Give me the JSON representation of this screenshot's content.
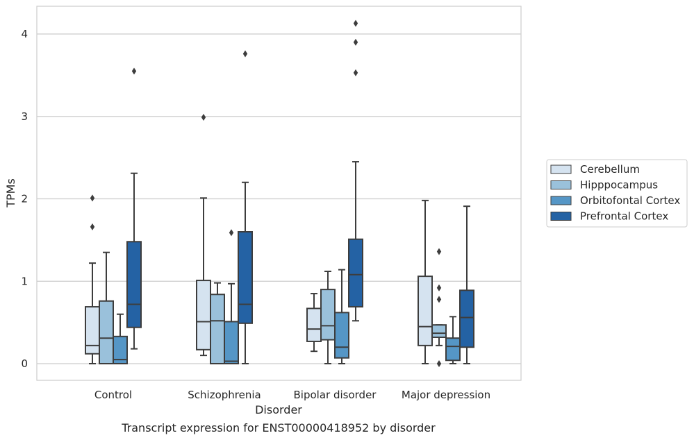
{
  "chart_data": {
    "type": "box",
    "title": "Transcript expression for ENST00000418952 by disorder",
    "xlabel": "Disorder",
    "ylabel": "TPMs",
    "categories": [
      "Control",
      "Schizophrenia",
      "Bipolar disorder",
      "Major depression"
    ],
    "ylim": [
      -0.2,
      4.35
    ],
    "yticks": [
      0,
      1,
      2,
      3,
      4
    ],
    "grid": "horizontal",
    "legend_position": "outside-right",
    "series": [
      {
        "name": "Cerebellum",
        "color": "#d5e3f0",
        "boxes": [
          {
            "whislo": 0.0,
            "q1": 0.12,
            "med": 0.22,
            "q3": 0.69,
            "whishi": 1.22,
            "fliers": [
              1.66,
              2.01
            ]
          },
          {
            "whislo": 0.1,
            "q1": 0.17,
            "med": 0.51,
            "q3": 1.01,
            "whishi": 2.01,
            "fliers": [
              2.99
            ]
          },
          {
            "whislo": 0.15,
            "q1": 0.27,
            "med": 0.42,
            "q3": 0.67,
            "whishi": 0.85,
            "fliers": []
          },
          {
            "whislo": 0.0,
            "q1": 0.22,
            "med": 0.45,
            "q3": 1.06,
            "whishi": 1.98,
            "fliers": []
          }
        ]
      },
      {
        "name": "Hipppocampus",
        "color": "#9ac1db",
        "boxes": [
          {
            "whislo": 0.0,
            "q1": 0.0,
            "med": 0.31,
            "q3": 0.76,
            "whishi": 1.35,
            "fliers": []
          },
          {
            "whislo": 0.0,
            "q1": 0.0,
            "med": 0.52,
            "q3": 0.84,
            "whishi": 0.98,
            "fliers": []
          },
          {
            "whislo": 0.0,
            "q1": 0.29,
            "med": 0.46,
            "q3": 0.9,
            "whishi": 1.12,
            "fliers": []
          },
          {
            "whislo": 0.22,
            "q1": 0.32,
            "med": 0.37,
            "q3": 0.47,
            "whishi": 0.47,
            "fliers": [
              0.0,
              0.78,
              0.92,
              1.36
            ]
          }
        ]
      },
      {
        "name": "Orbitofontal Cortex",
        "color": "#5596c6",
        "boxes": [
          {
            "whislo": 0.0,
            "q1": 0.0,
            "med": 0.05,
            "q3": 0.33,
            "whishi": 0.6,
            "fliers": []
          },
          {
            "whislo": 0.0,
            "q1": 0.0,
            "med": 0.03,
            "q3": 0.51,
            "whishi": 0.97,
            "fliers": [
              1.59
            ]
          },
          {
            "whislo": 0.0,
            "q1": 0.07,
            "med": 0.2,
            "q3": 0.62,
            "whishi": 1.14,
            "fliers": []
          },
          {
            "whislo": 0.0,
            "q1": 0.04,
            "med": 0.21,
            "q3": 0.31,
            "whishi": 0.57,
            "fliers": []
          }
        ]
      },
      {
        "name": "Prefrontal Cortex",
        "color": "#2462a4",
        "boxes": [
          {
            "whislo": 0.18,
            "q1": 0.44,
            "med": 0.72,
            "q3": 1.48,
            "whishi": 2.31,
            "fliers": [
              3.55
            ]
          },
          {
            "whislo": 0.0,
            "q1": 0.49,
            "med": 0.72,
            "q3": 1.6,
            "whishi": 2.2,
            "fliers": [
              3.76
            ]
          },
          {
            "whislo": 0.52,
            "q1": 0.69,
            "med": 1.08,
            "q3": 1.51,
            "whishi": 2.45,
            "fliers": [
              3.53,
              3.9,
              4.13
            ]
          },
          {
            "whislo": 0.0,
            "q1": 0.2,
            "med": 0.56,
            "q3": 0.89,
            "whishi": 1.91,
            "fliers": []
          }
        ]
      }
    ]
  }
}
